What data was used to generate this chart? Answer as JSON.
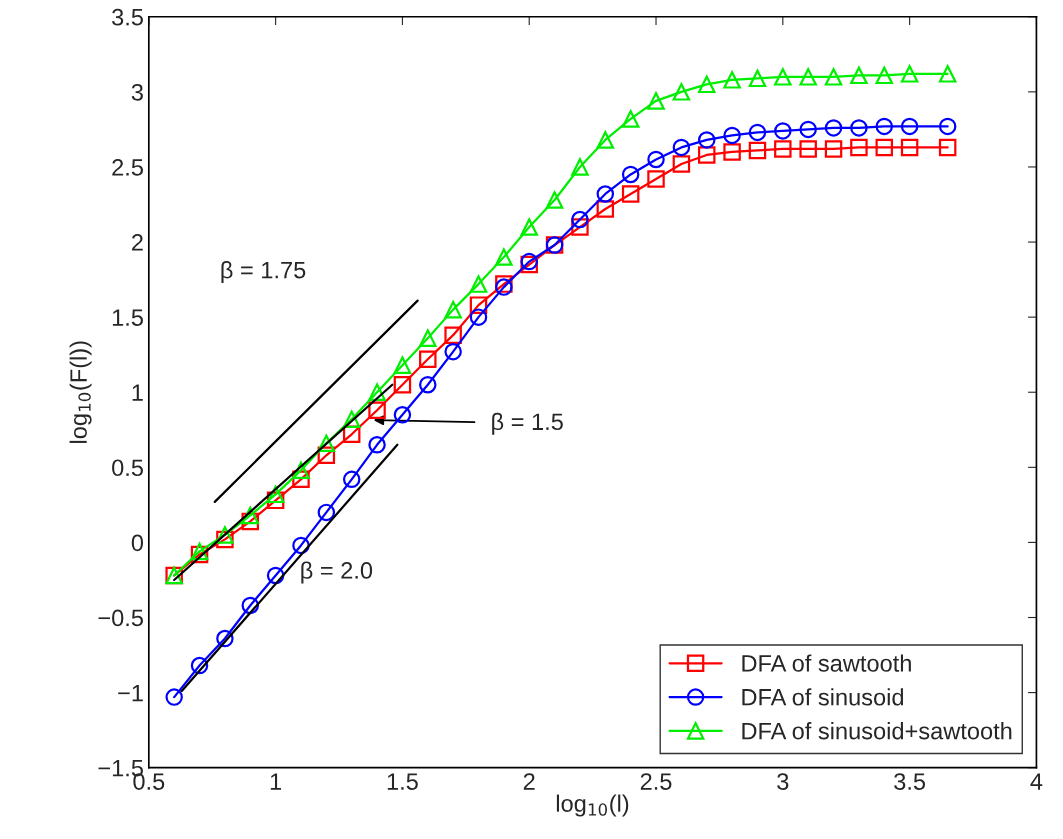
{
  "chart_data": {
    "type": "line",
    "xlabel": "log$_{10}$(l)",
    "ylabel": "log$_{10}$(F(l))",
    "xlim": [
      0.5,
      4
    ],
    "xticks": [
      {
        "value": 0.5,
        "label": "0.5"
      },
      1,
      {
        "value": 1.5,
        "label": "1.5"
      },
      2,
      {
        "value": 2.5,
        "label": "2.5"
      },
      3,
      {
        "value": 3.5,
        "label": "3.5"
      },
      4
    ],
    "ylim": [
      -1.5,
      3.5
    ],
    "yticks": [
      {
        "value": -1.5,
        "label": "−1.5"
      },
      {
        "value": -1,
        "label": "−1"
      },
      {
        "value": -0.5,
        "label": "−0.5"
      },
      0,
      {
        "value": 0.5,
        "label": "0.5"
      },
      1,
      {
        "value": 1.5,
        "label": "1.5"
      },
      2,
      {
        "value": 2.5,
        "label": "2.5"
      },
      3,
      {
        "value": 3.5,
        "label": "3.5"
      }
    ],
    "grid": false,
    "legend": "bottom right",
    "series": [
      {
        "name": "DFA of sawtooth",
        "color": "#ff0000",
        "marker": "square",
        "x": [
          0.6,
          0.7,
          0.8,
          0.9,
          1.0,
          1.1,
          1.2,
          1.3,
          1.4,
          1.5,
          1.6,
          1.7,
          1.8,
          1.9,
          2.0,
          2.1,
          2.2,
          2.3,
          2.4,
          2.5,
          2.6,
          2.7,
          2.8,
          2.9,
          3.0,
          3.1,
          3.2,
          3.3,
          3.4,
          3.5,
          3.65
        ],
        "values": [
          -0.22,
          -0.08,
          0.02,
          0.14,
          0.28,
          0.42,
          0.58,
          0.72,
          0.88,
          1.05,
          1.22,
          1.38,
          1.58,
          1.72,
          1.85,
          1.98,
          2.1,
          2.22,
          2.32,
          2.42,
          2.52,
          2.58,
          2.6,
          2.61,
          2.62,
          2.62,
          2.62,
          2.63,
          2.63,
          2.63,
          2.63
        ]
      },
      {
        "name": "DFA of sinusoid",
        "color": "#0000ff",
        "marker": "circle",
        "x": [
          0.6,
          0.7,
          0.8,
          0.9,
          1.0,
          1.1,
          1.2,
          1.3,
          1.4,
          1.5,
          1.6,
          1.7,
          1.8,
          1.9,
          2.0,
          2.1,
          2.2,
          2.3,
          2.4,
          2.5,
          2.6,
          2.7,
          2.8,
          2.9,
          3.0,
          3.1,
          3.2,
          3.3,
          3.4,
          3.5,
          3.65
        ],
        "values": [
          -1.03,
          -0.82,
          -0.64,
          -0.42,
          -0.22,
          -0.02,
          0.2,
          0.42,
          0.65,
          0.85,
          1.05,
          1.27,
          1.5,
          1.7,
          1.87,
          1.98,
          2.15,
          2.32,
          2.45,
          2.55,
          2.63,
          2.68,
          2.71,
          2.73,
          2.74,
          2.75,
          2.76,
          2.76,
          2.77,
          2.77,
          2.77
        ]
      },
      {
        "name": "DFA of sinusoid+sawtooth",
        "color": "#00ee00",
        "marker": "triangle",
        "x": [
          0.6,
          0.7,
          0.8,
          0.9,
          1.0,
          1.1,
          1.2,
          1.3,
          1.4,
          1.5,
          1.6,
          1.7,
          1.8,
          1.9,
          2.0,
          2.1,
          2.2,
          2.3,
          2.4,
          2.5,
          2.6,
          2.7,
          2.8,
          2.9,
          3.0,
          3.1,
          3.2,
          3.3,
          3.4,
          3.5,
          3.65
        ],
        "values": [
          -0.22,
          -0.06,
          0.05,
          0.18,
          0.32,
          0.48,
          0.66,
          0.82,
          1.0,
          1.18,
          1.36,
          1.55,
          1.72,
          1.9,
          2.1,
          2.28,
          2.5,
          2.68,
          2.82,
          2.94,
          3.0,
          3.05,
          3.08,
          3.09,
          3.1,
          3.1,
          3.1,
          3.11,
          3.11,
          3.12,
          3.12
        ]
      },
      {
        "color": "#000000",
        "marker": "none",
        "x": [
          0.76,
          1.56
        ],
        "values": [
          0.27,
          1.61
        ]
      },
      {
        "color": "#000000",
        "marker": "none",
        "x": [
          0.6,
          1.46
        ],
        "values": [
          -0.25,
          1.05
        ]
      },
      {
        "color": "#000000",
        "marker": "none",
        "x": [
          0.63,
          1.48
        ],
        "values": [
          -0.99,
          0.65
        ]
      }
    ],
    "annotations": [
      "β = 1.75",
      "β = 1.5",
      "β = 2.0"
    ]
  }
}
